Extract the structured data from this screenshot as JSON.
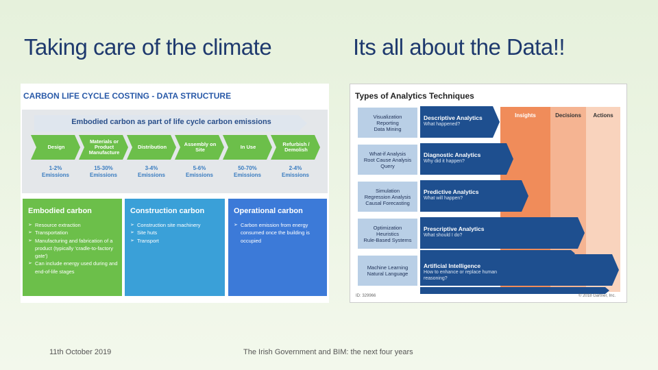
{
  "slide": {
    "title_left": "Taking care of the climate",
    "title_right": "Its all about the Data!!",
    "date": "11th October 2019",
    "footer": "The Irish Government and BIM: the next four years"
  },
  "carbon_figure": {
    "title": "CARBON LIFE CYCLE COSTING - DATA STRUCTURE",
    "banner": "Embodied carbon as part of life cycle carbon emissions",
    "stages": [
      {
        "name": "Design",
        "share": "1-2%",
        "unit": "Emissions"
      },
      {
        "name": "Materials or Product Manufacture",
        "share": "15-30%",
        "unit": "Emissions"
      },
      {
        "name": "Distribution",
        "share": "3-4%",
        "unit": "Emissions"
      },
      {
        "name": "Assembly on Site",
        "share": "5-6%",
        "unit": "Emissions"
      },
      {
        "name": "In Use",
        "share": "50-70%",
        "unit": "Emissions"
      },
      {
        "name": "Refurbish / Demolish",
        "share": "2-4%",
        "unit": "Emissions"
      }
    ],
    "boxes": [
      {
        "title": "Embodied carbon",
        "items": [
          "Resource extraction",
          "Transportation",
          "Manufacturing and fabrication of a product (typically 'cradle-to-factory gate')",
          "Can include energy used during and end-of-life stages"
        ]
      },
      {
        "title": "Construction carbon",
        "items": [
          "Construction site machinery",
          "Site huts",
          "Transport"
        ]
      },
      {
        "title": "Operational carbon",
        "items": [
          "Carbon emission from energy consumed once the building is occupied"
        ]
      }
    ]
  },
  "analytics_figure": {
    "title": "Types of Analytics Techniques",
    "columns": [
      "Insights",
      "Decisions",
      "Actions"
    ],
    "rows": [
      {
        "methods": [
          "Visualization",
          "Reporting",
          "Data Mining"
        ],
        "name": "Descriptive Analytics",
        "question": "What happened?"
      },
      {
        "methods": [
          "What-if Analysis",
          "Root Cause Analysis",
          "Query"
        ],
        "name": "Diagnostic Analytics",
        "question": "Why did it happen?"
      },
      {
        "methods": [
          "Simulation",
          "Regression Analysis",
          "Causal Forecasting"
        ],
        "name": "Predictive Analytics",
        "question": "What will happen?"
      },
      {
        "methods": [
          "Optimization",
          "Heuristics",
          "Rule-Based Systems"
        ],
        "name": "Prescriptive Analytics",
        "question": "What should I do?"
      },
      {
        "methods": [
          "Machine Learning",
          "Natural Language"
        ],
        "name": "Artificial Intelligence",
        "question": "How to enhance or replace human reasoning?"
      }
    ],
    "id": "ID: 329966",
    "copyright": "© 2018 Gartner, Inc."
  }
}
